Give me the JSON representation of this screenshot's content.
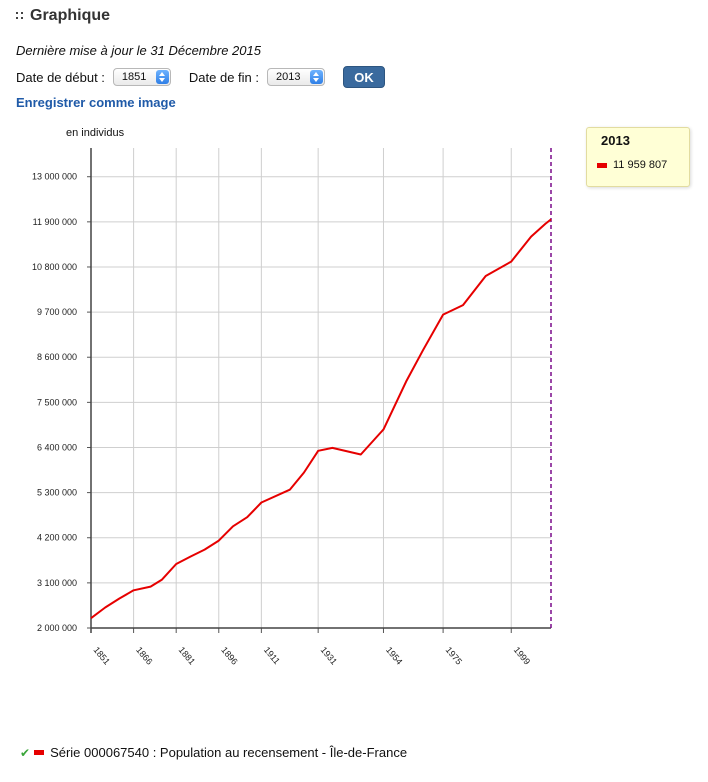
{
  "page": {
    "title": "Graphique",
    "updated": "Dernière mise à jour le 31 Décembre 2015",
    "controls": {
      "start_label": "Date de début :",
      "start_value": "1851",
      "end_label": "Date de fin :",
      "end_value": "2013",
      "ok_label": "OK"
    },
    "save_link": "Enregistrer comme image",
    "tooltip": {
      "year": "2013",
      "value": "11 959 807"
    },
    "legend": {
      "text": "Série 000067540 : Population au recensement - Île-de-France"
    },
    "colors": {
      "series": "#e60000",
      "marker_line": "#7a0a8a",
      "button": "#3a6a9e",
      "link": "#1f5aa8",
      "tooltip_bg": "#ffffd6"
    }
  },
  "chart_data": {
    "type": "line",
    "title": "",
    "xlabel": "",
    "ylabel": "en individus",
    "xlim": [
      1851,
      2013
    ],
    "ylim": [
      2000000,
      13700000
    ],
    "y_ticks": [
      2000000,
      3100000,
      4200000,
      5300000,
      6400000,
      7500000,
      8600000,
      9700000,
      10800000,
      11900000,
      13000000
    ],
    "y_tick_labels": [
      "2 000 000",
      "3 100 000",
      "4 200 000",
      "5 300 000",
      "6 400 000",
      "7 500 000",
      "8 600 000",
      "9 700 000",
      "10 800 000",
      "11 900 000",
      "13 000 000"
    ],
    "x_ticks": [
      1851,
      1866,
      1881,
      1896,
      1911,
      1931,
      1954,
      1975,
      1999
    ],
    "x_tick_labels": [
      "1851",
      "1866",
      "1881",
      "1896",
      "1911",
      "1931",
      "1954",
      "1975",
      "1999"
    ],
    "grid": true,
    "highlight_x": 2013,
    "series": [
      {
        "name": "",
        "color": "#e60000",
        "points": [
          [
            1851,
            2240000
          ],
          [
            1856,
            2500000
          ],
          [
            1861,
            2720000
          ],
          [
            1866,
            2920000
          ],
          [
            1872,
            3010000
          ],
          [
            1876,
            3180000
          ],
          [
            1881,
            3560000
          ],
          [
            1886,
            3740000
          ],
          [
            1891,
            3910000
          ],
          [
            1896,
            4130000
          ],
          [
            1901,
            4480000
          ],
          [
            1906,
            4700000
          ],
          [
            1911,
            5060000
          ],
          [
            1921,
            5370000
          ],
          [
            1926,
            5790000
          ],
          [
            1931,
            6320000
          ],
          [
            1936,
            6390000
          ],
          [
            1946,
            6230000
          ],
          [
            1954,
            6840000
          ],
          [
            1962,
            8010000
          ],
          [
            1968,
            8780000
          ],
          [
            1975,
            9640000
          ],
          [
            1982,
            9870000
          ],
          [
            1990,
            10580000
          ],
          [
            1999,
            10930000
          ],
          [
            2006,
            11540000
          ],
          [
            2011,
            11850000
          ],
          [
            2013,
            11959807
          ]
        ]
      }
    ]
  }
}
